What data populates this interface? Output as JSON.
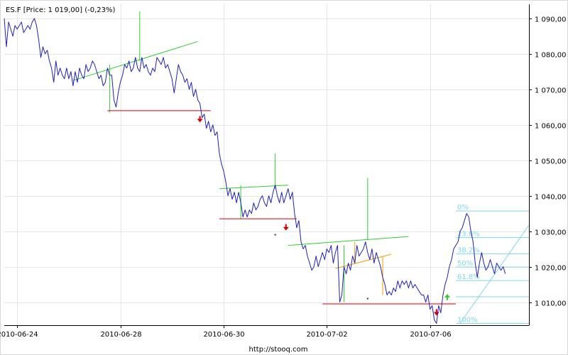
{
  "title": "ES.F [Price: 1 019,00] (-0,23%)",
  "footer": "http://stooq.com",
  "colors": {
    "price_line": "#1f1fc0",
    "grid": "#e6e6e6",
    "axis": "#000000",
    "support": "#d40000",
    "pattern_green": "#33cc33",
    "pattern_orange": "#f0a000",
    "fib": "#7fd8e8"
  },
  "chart_data": {
    "type": "line",
    "title": "ES.F [Price: 1 019,00] (-0,23%)",
    "xlabel": "",
    "ylabel": "",
    "ylim": [
      1003.5,
      1094
    ],
    "yticks": [
      1010,
      1020,
      1030,
      1040,
      1050,
      1060,
      1070,
      1080,
      1090
    ],
    "ytick_labels": [
      "1 010,00",
      "1 020,00",
      "1 030,00",
      "1 040,00",
      "1 050,00",
      "1 060,00",
      "1 070,00",
      "1 080,00",
      "1 090,00"
    ],
    "xticks": [
      {
        "t": 6,
        "label": "2010-06-24"
      },
      {
        "t": 54,
        "label": "2010-06-28"
      },
      {
        "t": 102,
        "label": "2010-06-30"
      },
      {
        "t": 150,
        "label": "2010-07-02"
      },
      {
        "t": 198,
        "label": "2010-07-06"
      }
    ],
    "xlim": [
      0,
      244
    ],
    "grid": true,
    "series": [
      {
        "values": [
          [
            0,
            1090
          ],
          [
            1,
            1082
          ],
          [
            2,
            1089
          ],
          [
            3,
            1087
          ],
          [
            4,
            1085
          ],
          [
            5,
            1088
          ],
          [
            6,
            1087
          ],
          [
            7,
            1088
          ],
          [
            8,
            1089
          ],
          [
            9,
            1086
          ],
          [
            10,
            1087
          ],
          [
            11,
            1088
          ],
          [
            12,
            1087
          ],
          [
            13,
            1089
          ],
          [
            14,
            1090
          ],
          [
            15,
            1088
          ],
          [
            16,
            1084
          ],
          [
            17,
            1079
          ],
          [
            18,
            1082
          ],
          [
            19,
            1080
          ],
          [
            20,
            1081
          ],
          [
            21,
            1078
          ],
          [
            22,
            1076
          ],
          [
            23,
            1072
          ],
          [
            24,
            1078
          ],
          [
            25,
            1074
          ],
          [
            26,
            1076
          ],
          [
            27,
            1074
          ],
          [
            28,
            1073
          ],
          [
            29,
            1076
          ],
          [
            30,
            1073
          ],
          [
            31,
            1075
          ],
          [
            32,
            1071
          ],
          [
            33,
            1075
          ],
          [
            34,
            1072
          ],
          [
            35,
            1076
          ],
          [
            36,
            1074
          ],
          [
            37,
            1073
          ],
          [
            38,
            1077
          ],
          [
            39,
            1075
          ],
          [
            40,
            1076
          ],
          [
            41,
            1078
          ],
          [
            42,
            1077
          ],
          [
            43,
            1075
          ],
          [
            44,
            1073
          ],
          [
            45,
            1074
          ],
          [
            46,
            1071
          ],
          [
            47,
            1072
          ],
          [
            48,
            1076
          ],
          [
            49,
            1074
          ],
          [
            50,
            1074
          ],
          [
            51,
            1067
          ],
          [
            52,
            1065
          ],
          [
            53,
            1069
          ],
          [
            54,
            1072
          ],
          [
            55,
            1074
          ],
          [
            56,
            1077
          ],
          [
            57,
            1076
          ],
          [
            58,
            1078
          ],
          [
            59,
            1075
          ],
          [
            60,
            1076
          ],
          [
            61,
            1079
          ],
          [
            62,
            1076
          ],
          [
            63,
            1075
          ],
          [
            64,
            1079
          ],
          [
            65,
            1076
          ],
          [
            66,
            1077
          ],
          [
            67,
            1075
          ],
          [
            68,
            1074
          ],
          [
            69,
            1076
          ],
          [
            70,
            1075
          ],
          [
            71,
            1079
          ],
          [
            72,
            1078
          ],
          [
            73,
            1077
          ],
          [
            74,
            1079
          ],
          [
            75,
            1076
          ],
          [
            76,
            1077
          ],
          [
            77,
            1075
          ],
          [
            78,
            1073
          ],
          [
            79,
            1069
          ],
          [
            80,
            1073
          ],
          [
            81,
            1077
          ],
          [
            82,
            1075
          ],
          [
            83,
            1074
          ],
          [
            84,
            1072
          ],
          [
            85,
            1073
          ],
          [
            86,
            1070
          ],
          [
            87,
            1072
          ],
          [
            88,
            1068
          ],
          [
            89,
            1070
          ],
          [
            90,
            1067
          ],
          [
            91,
            1066
          ],
          [
            92,
            1062
          ],
          [
            93,
            1063
          ],
          [
            94,
            1059
          ],
          [
            95,
            1061
          ],
          [
            96,
            1058
          ],
          [
            97,
            1060
          ],
          [
            98,
            1057
          ],
          [
            99,
            1058
          ],
          [
            100,
            1052
          ],
          [
            101,
            1049
          ],
          [
            102,
            1047
          ],
          [
            103,
            1044
          ],
          [
            104,
            1040
          ],
          [
            105,
            1042
          ],
          [
            106,
            1039
          ],
          [
            107,
            1041
          ],
          [
            108,
            1038
          ],
          [
            109,
            1041
          ],
          [
            110,
            1038
          ],
          [
            111,
            1034
          ],
          [
            112,
            1036
          ],
          [
            113,
            1034
          ],
          [
            114,
            1036
          ],
          [
            115,
            1035
          ],
          [
            116,
            1038
          ],
          [
            117,
            1036
          ],
          [
            118,
            1037
          ],
          [
            119,
            1039
          ],
          [
            120,
            1040
          ],
          [
            121,
            1038
          ],
          [
            122,
            1037
          ],
          [
            123,
            1040
          ],
          [
            124,
            1038
          ],
          [
            125,
            1041
          ],
          [
            126,
            1043
          ],
          [
            127,
            1040
          ],
          [
            128,
            1038
          ],
          [
            129,
            1041
          ],
          [
            130,
            1038
          ],
          [
            131,
            1040
          ],
          [
            132,
            1042
          ],
          [
            133,
            1039
          ],
          [
            134,
            1041
          ],
          [
            135,
            1035
          ],
          [
            136,
            1031
          ],
          [
            137,
            1033
          ],
          [
            138,
            1027
          ],
          [
            139,
            1025
          ],
          [
            140,
            1026
          ],
          [
            141,
            1023
          ],
          [
            142,
            1021
          ],
          [
            143,
            1019
          ],
          [
            144,
            1020
          ],
          [
            145,
            1023
          ],
          [
            146,
            1020
          ],
          [
            147,
            1022
          ],
          [
            148,
            1024
          ],
          [
            149,
            1022
          ],
          [
            150,
            1025
          ],
          [
            151,
            1024
          ],
          [
            152,
            1026
          ],
          [
            153,
            1021
          ],
          [
            154,
            1024
          ],
          [
            155,
            1026
          ],
          [
            156,
            1010
          ],
          [
            157,
            1012
          ],
          [
            158,
            1020
          ],
          [
            159,
            1018
          ],
          [
            160,
            1021
          ],
          [
            161,
            1019
          ],
          [
            162,
            1023
          ],
          [
            163,
            1021
          ],
          [
            164,
            1026
          ],
          [
            165,
            1023
          ],
          [
            166,
            1024
          ],
          [
            167,
            1025
          ],
          [
            168,
            1027
          ],
          [
            169,
            1024
          ],
          [
            170,
            1022
          ],
          [
            171,
            1025
          ],
          [
            172,
            1021
          ],
          [
            173,
            1024
          ],
          [
            174,
            1022
          ],
          [
            175,
            1020
          ],
          [
            176,
            1017
          ],
          [
            177,
            1015
          ],
          [
            178,
            1012
          ],
          [
            179,
            1013
          ],
          [
            180,
            1012
          ],
          [
            181,
            1014
          ],
          [
            182,
            1013
          ],
          [
            183,
            1016
          ],
          [
            184,
            1014
          ],
          [
            185,
            1016
          ],
          [
            186,
            1015
          ],
          [
            187,
            1016
          ],
          [
            188,
            1014
          ],
          [
            189,
            1016
          ],
          [
            190,
            1014
          ],
          [
            191,
            1015
          ],
          [
            192,
            1014
          ],
          [
            193,
            1013
          ],
          [
            194,
            1012
          ],
          [
            195,
            1012
          ],
          [
            196,
            1010
          ],
          [
            197,
            1012
          ],
          [
            198,
            1008
          ],
          [
            199,
            1009
          ],
          [
            200,
            1005
          ],
          [
            201,
            1004
          ],
          [
            202,
            1009
          ],
          [
            203,
            1007
          ],
          [
            204,
            1012
          ],
          [
            205,
            1015
          ],
          [
            206,
            1017
          ],
          [
            207,
            1020
          ],
          [
            208,
            1022
          ],
          [
            209,
            1025
          ],
          [
            210,
            1026
          ],
          [
            211,
            1027
          ],
          [
            212,
            1030
          ],
          [
            213,
            1031
          ],
          [
            214,
            1033
          ],
          [
            215,
            1035
          ],
          [
            216,
            1034
          ],
          [
            217,
            1030
          ],
          [
            218,
            1027
          ],
          [
            219,
            1021
          ],
          [
            220,
            1017
          ],
          [
            221,
            1021
          ],
          [
            222,
            1024
          ],
          [
            223,
            1021
          ],
          [
            224,
            1019
          ],
          [
            225,
            1020
          ],
          [
            226,
            1022
          ],
          [
            227,
            1020
          ],
          [
            228,
            1018
          ],
          [
            229,
            1021
          ],
          [
            230,
            1020
          ],
          [
            231,
            1019
          ],
          [
            232,
            1020
          ],
          [
            233,
            1018
          ]
        ]
      }
    ],
    "annotations": {
      "support_lines": [
        {
          "t1": 48,
          "t2": 96,
          "y": 1064
        },
        {
          "t1": 100,
          "t2": 136,
          "y": 1033.5
        },
        {
          "t1": 148,
          "t2": 210,
          "y": 1009.5
        }
      ],
      "green_lines": [
        {
          "t1": 32,
          "t2": 90,
          "y1": 1072.5,
          "y2": 1083.5
        },
        {
          "t1": 100,
          "t2": 132,
          "y1": 1042,
          "y2": 1043
        },
        {
          "t1": 132,
          "t2": 188,
          "y1": 1026,
          "y2": 1028.5
        },
        {
          "t1": 49,
          "t2": 49,
          "y1": 1063.5,
          "y2": 1077
        },
        {
          "t1": 63,
          "t2": 63,
          "y1": 1078,
          "y2": 1092
        },
        {
          "t1": 110,
          "t2": 110,
          "y1": 1033.5,
          "y2": 1043
        },
        {
          "t1": 126,
          "t2": 126,
          "y1": 1042,
          "y2": 1052
        },
        {
          "t1": 158,
          "t2": 158,
          "y1": 1010,
          "y2": 1026
        },
        {
          "t1": 169,
          "t2": 169,
          "y1": 1027.5,
          "y2": 1045
        }
      ],
      "orange_lines": [
        {
          "t1": 154,
          "t2": 180,
          "y1": 1019.5,
          "y2": 1023.5
        },
        {
          "t1": 163,
          "t2": 163,
          "y1": 1021,
          "y2": 1027
        },
        {
          "t1": 176,
          "t2": 176,
          "y1": 1012,
          "y2": 1023
        }
      ],
      "sell_arrows": [
        {
          "t": 91,
          "y": 1061.5
        },
        {
          "t": 131,
          "y": 1031
        },
        {
          "t": 201,
          "y": 1007
        }
      ],
      "buy_arrows": [
        {
          "t": 206,
          "y": 1011.5
        }
      ],
      "dots": [
        {
          "t": 126,
          "y": 1029
        },
        {
          "t": 169,
          "y": 1011
        }
      ]
    },
    "fibonacci": {
      "t_start": 210,
      "t_end": 244,
      "low": 1004,
      "high": 1035.7,
      "levels": [
        {
          "label": "0%",
          "value": 1035.7
        },
        {
          "label": "23.6%",
          "value": 1028.2
        },
        {
          "label": "38.2%",
          "value": 1023.6
        },
        {
          "label": "50%",
          "value": 1019.9
        },
        {
          "label": "61.8%",
          "value": 1016.1
        },
        {
          "label": "",
          "value": 1011.5
        },
        {
          "label": "100%",
          "value": 1004
        }
      ]
    }
  }
}
